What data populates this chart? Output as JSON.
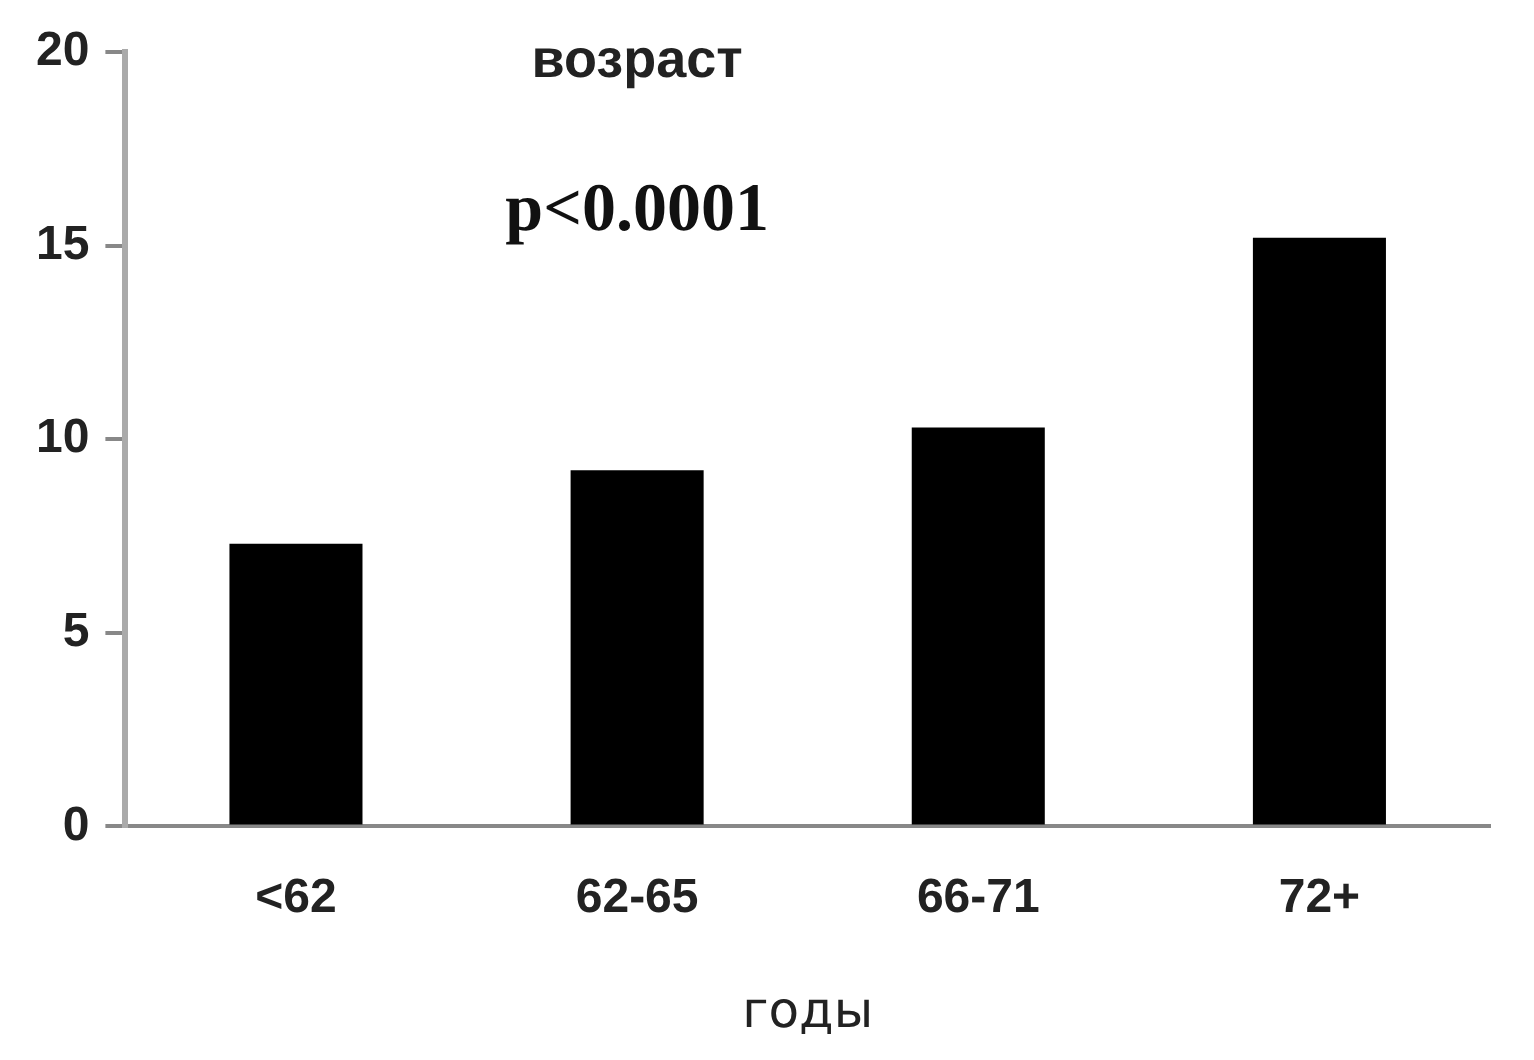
{
  "chart_data": {
    "type": "bar",
    "title": "возраст",
    "xlabel": "годы",
    "annotations": [
      "p<0.0001"
    ],
    "categories": [
      "<62",
      "62-65",
      "66-71",
      "72+"
    ],
    "values": [
      7.3,
      9.2,
      10.3,
      15.2
    ],
    "color": "#000000",
    "ylim": [
      0,
      20
    ],
    "yticks": [
      0,
      5,
      10,
      15,
      20
    ],
    "grid": false,
    "legend": false
  }
}
